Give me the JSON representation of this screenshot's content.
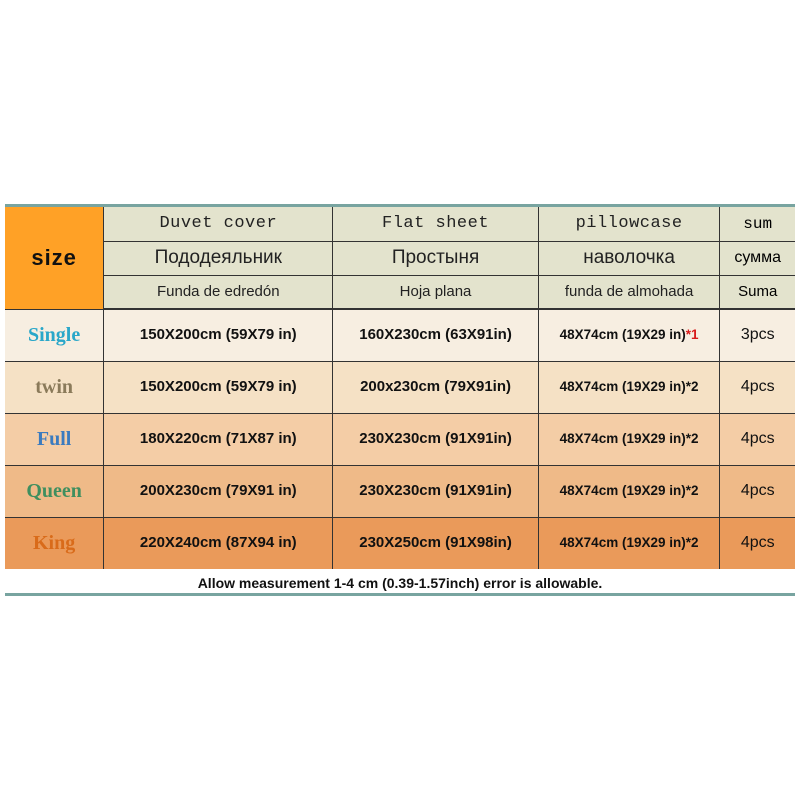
{
  "table": {
    "size_label": "size",
    "header": {
      "duvet": {
        "en": "Duvet cover",
        "ru": "Пододеяльник",
        "es": "Funda de edredón"
      },
      "sheet": {
        "en": "Flat sheet",
        "ru": "Простыня",
        "es": "Hoja plana"
      },
      "pillow": {
        "en": "pillowcase",
        "ru": "наволочка",
        "es": "funda de almohada"
      },
      "sum": {
        "en": "sum",
        "ru": "сумма",
        "es": "Suma"
      }
    },
    "columns": {
      "widths_pct": [
        12.5,
        29,
        26,
        23,
        9.5
      ]
    },
    "rows": [
      {
        "size": "Single",
        "size_color": "#2aa7c9",
        "bg": "#f7eee1",
        "duvet": "150X200cm (59X79 in)",
        "sheet": "160X230cm (63X91in)",
        "pillow_base": "48X74cm (19X29 in)",
        "pillow_qty": "*1",
        "pillow_qty_color": "#d81b1b",
        "sum": "3pcs"
      },
      {
        "size": "twin",
        "size_color": "#8a7a5a",
        "bg": "#f5e1c5",
        "duvet": "150X200cm (59X79 in)",
        "sheet": "200x230cm (79X91in)",
        "pillow_base": "48X74cm (19X29 in)",
        "pillow_qty": "*2",
        "pillow_qty_color": "#111111",
        "sum": "4pcs"
      },
      {
        "size": "Full",
        "size_color": "#3b7bbf",
        "bg": "#f4cda6",
        "duvet": "180X220cm (71X87 in)",
        "sheet": "230X230cm (91X91in)",
        "pillow_base": "48X74cm (19X29 in)",
        "pillow_qty": "*2",
        "pillow_qty_color": "#111111",
        "sum": "4pcs"
      },
      {
        "size": "Queen",
        "size_color": "#3f8f5f",
        "bg": "#efba88",
        "duvet": "200X230cm (79X91 in)",
        "sheet": "230X230cm (91X91in)",
        "pillow_base": "48X74cm (19X29 in)",
        "pillow_qty": "*2",
        "pillow_qty_color": "#111111",
        "sum": "4pcs"
      },
      {
        "size": "King",
        "size_color": "#d96b1a",
        "bg": "#ea9a5a",
        "duvet": "220X240cm (87X94 in)",
        "sheet": "230X250cm (91X98in)",
        "pillow_base": "48X74cm (19X29 in)",
        "pillow_qty": "*2",
        "pillow_qty_color": "#111111",
        "sum": "4pcs"
      }
    ],
    "footnote": "Allow measurement 1-4 cm (0.39-1.57inch) error is allowable.",
    "style": {
      "border_color": "#78a4a0",
      "header_bg": "#e3e3cd",
      "size_cell_bg": "#ffa126",
      "grid_color": "#333333"
    }
  }
}
